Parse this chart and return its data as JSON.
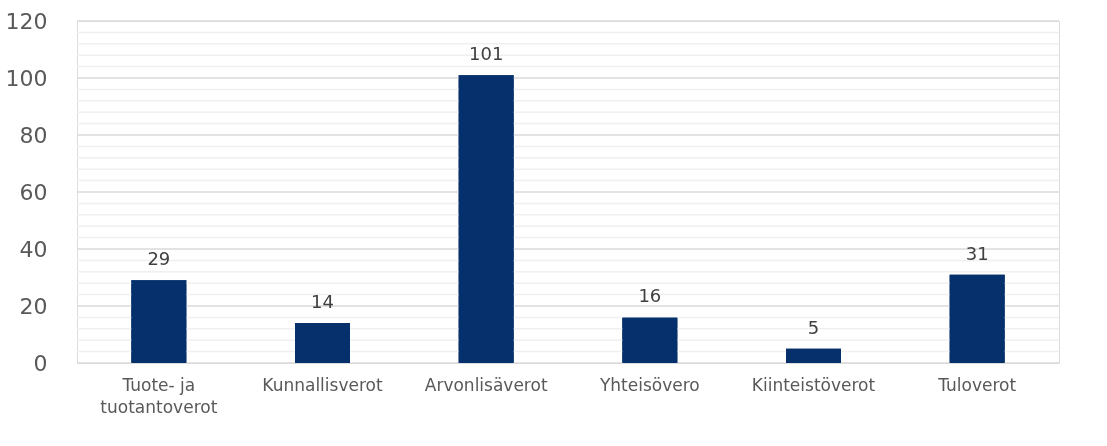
{
  "chart_data": {
    "type": "bar",
    "categories": [
      "Tuote- ja tuotantoverot",
      "Kunnallisverot",
      "Arvonlisäverot",
      "Yhteisövero",
      "Kiinteistöverot",
      "Tuloverot"
    ],
    "values": [
      29,
      14,
      101,
      16,
      5,
      31
    ],
    "color": "#06306b",
    "ylim": [
      0,
      120
    ],
    "yticks": [
      0,
      {
        "value": 4,
        "label": null
      },
      {
        "value": 8,
        "label": null
      },
      {
        "value": 12,
        "label": null
      },
      {
        "value": 16,
        "label": null
      },
      20,
      {
        "value": 24,
        "label": null
      },
      {
        "value": 28,
        "label": null
      },
      {
        "value": 32,
        "label": null
      },
      {
        "value": 36,
        "label": null
      },
      40,
      {
        "value": 44,
        "label": null
      },
      {
        "value": 48,
        "label": null
      },
      {
        "value": 52,
        "label": null
      },
      {
        "value": 56,
        "label": null
      },
      60,
      {
        "value": 64,
        "label": null
      },
      {
        "value": 68,
        "label": null
      },
      {
        "value": 72,
        "label": null
      },
      {
        "value": 76,
        "label": null
      },
      80,
      {
        "value": 84,
        "label": null
      },
      {
        "value": 88,
        "label": null
      },
      {
        "value": 92,
        "label": null
      },
      {
        "value": 96,
        "label": null
      },
      100,
      {
        "value": 104,
        "label": null
      },
      {
        "value": 108,
        "label": null
      },
      {
        "value": 112,
        "label": null
      },
      {
        "value": 116,
        "label": null
      },
      120
    ],
    "grid": "y",
    "data_labels": true
  }
}
